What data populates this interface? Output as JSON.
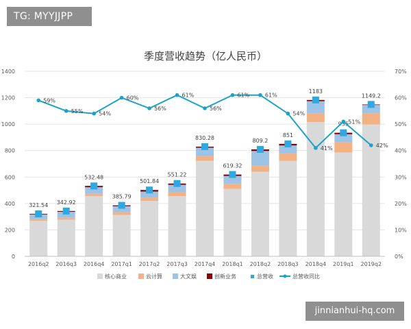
{
  "watermark_tag": "TG: MYYJJPP",
  "site_tag": "jinnianhui-hq.com",
  "chart_data": {
    "type": "bar",
    "title": "季度营收趋势（亿人民币）",
    "categories": [
      "2016q2",
      "2016q3",
      "2016q4",
      "2017q1",
      "2017q2",
      "2017q3",
      "2017q4",
      "2018q1",
      "2018q2",
      "2018q3",
      "2018q4",
      "2019q1",
      "2019q2"
    ],
    "stacked": true,
    "series": [
      {
        "name": "核心商业",
        "color": "#d9d9d9",
        "values": [
          268,
          277,
          455,
          313,
          420,
          455,
          723,
          511,
          640,
          722,
          1016,
          786,
          997
        ]
      },
      {
        "name": "云计算",
        "color": "#f4b183",
        "values": [
          13,
          15,
          18,
          21,
          24,
          30,
          36,
          37,
          46,
          57,
          66,
          77,
          86
        ]
      },
      {
        "name": "大文娱",
        "color": "#9dc3e6",
        "values": [
          36,
          45,
          50,
          45,
          46,
          56,
          63,
          60,
          111,
          60,
          92,
          61,
          62
        ]
      },
      {
        "name": "创新业务",
        "color": "#8b0000",
        "values": [
          5,
          6,
          10,
          7,
          12,
          10,
          8,
          11,
          12,
          12,
          9,
          11,
          4
        ]
      }
    ],
    "total": {
      "name": "总营收",
      "color": "#2ea8e0",
      "values": [
        321.54,
        342.92,
        532.48,
        385.79,
        501.84,
        551.22,
        830.28,
        619.32,
        809.2,
        851,
        1183,
        935,
        1149.2
      ],
      "labels": [
        "321.54",
        "342.92",
        "532.48",
        "385.79",
        "501.84",
        "551.22",
        "830.28",
        "619.32",
        "809.2",
        "851",
        "1183",
        "935",
        "1149.2"
      ]
    },
    "growth": {
      "name": "总营收同比",
      "color": "#1aa3c8",
      "values": [
        59,
        55,
        54,
        60,
        56,
        61,
        56,
        61,
        61,
        54,
        41,
        51,
        42
      ],
      "labels": [
        "59%",
        "55%",
        "54%",
        "60%",
        "56%",
        "61%",
        "56%",
        "61%",
        "61%",
        "54%",
        "41%",
        "51%",
        "42%"
      ]
    },
    "y_left": {
      "min": 0,
      "max": 1400,
      "step": 200,
      "ticks": [
        "0",
        "200",
        "400",
        "600",
        "800",
        "1000",
        "1200",
        "1400"
      ]
    },
    "y_right": {
      "min": 0,
      "max": 70,
      "step": 10,
      "ticks": [
        "0%",
        "10%",
        "20%",
        "30%",
        "40%",
        "50%",
        "60%",
        "70%"
      ]
    },
    "grid": true,
    "legend_position": "bottom"
  }
}
